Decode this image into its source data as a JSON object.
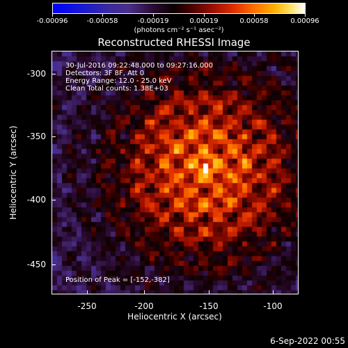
{
  "colorbar": {
    "ticks": [
      "-0.00096",
      "-0.00058",
      "-0.00019",
      "0.00019",
      "0.00058",
      "0.00096"
    ],
    "unit": "(photons cm⁻² s⁻¹ asec⁻²)"
  },
  "title": "Reconstructed RHESSI Image",
  "info": {
    "time": "30-Jul-2016 09:22:48.000 to 09:27:16.000",
    "detectors": "Detectors: 3F 8F, Att 0",
    "energy": "Energy Range: 12.0 - 25.0 keV",
    "clean": "Clean     Total counts: 1.38E+03",
    "peak": "Position of Peak = [-152,-382]"
  },
  "axes": {
    "xlabel": "Heliocentric X (arcsec)",
    "ylabel": "Heliocentric Y (arcsec)",
    "xticks": [
      "-250",
      "-200",
      "-150",
      "-100"
    ],
    "yticks": [
      "-300",
      "-350",
      "-400",
      "-450"
    ],
    "xrange": [
      -275,
      -80
    ],
    "yrange": [
      -478,
      -286
    ]
  },
  "peak_position": [
    -152,
    -382
  ],
  "timestamp": "6-Sep-2022 00:55"
}
